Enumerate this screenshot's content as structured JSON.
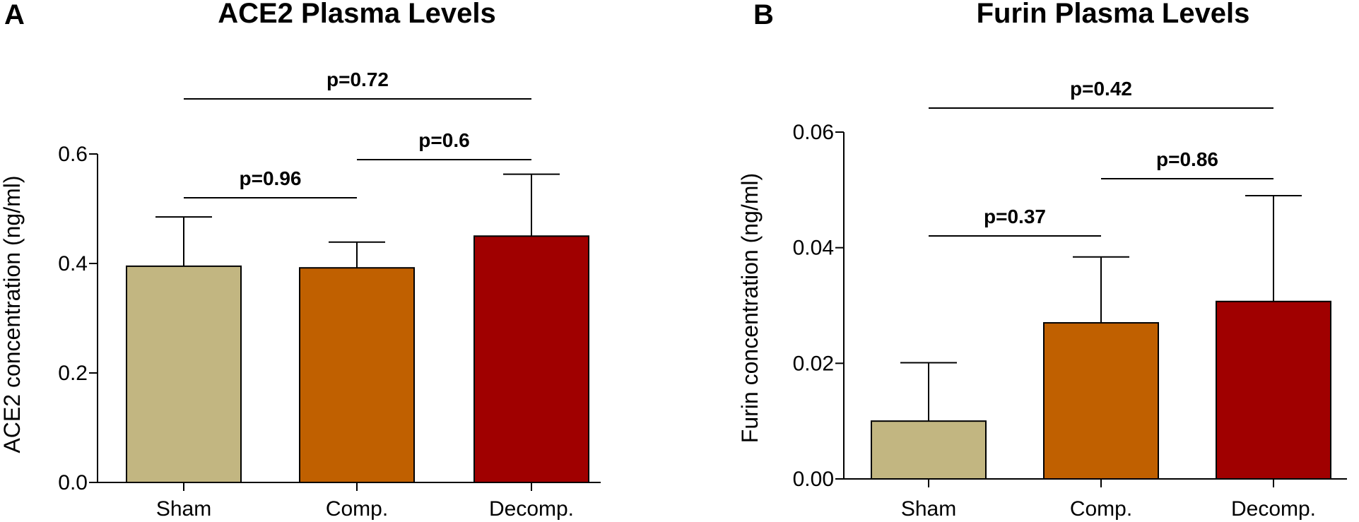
{
  "colors": {
    "sham": "#C2B681",
    "comp": "#C06000",
    "decomp": "#A00000"
  },
  "chart_data": [
    {
      "panel": "A",
      "type": "bar",
      "title": "ACE2 Plasma Levels",
      "ylabel": "ACE2 concentration (ng/ml)",
      "xlabel": "",
      "categories": [
        "Sham",
        "Comp.",
        "Decomp."
      ],
      "values": [
        0.395,
        0.392,
        0.45
      ],
      "errors": [
        0.09,
        0.047,
        0.113
      ],
      "ylim": [
        0,
        0.6
      ],
      "yticks": [
        "0.0",
        "0.2",
        "0.4",
        "0.6"
      ],
      "ytick_values": [
        0,
        0.2,
        0.4,
        0.6
      ],
      "comparisons": [
        {
          "from": 0,
          "to": 1,
          "label": "p=0.96"
        },
        {
          "from": 1,
          "to": 2,
          "label": "p=0.6"
        },
        {
          "from": 0,
          "to": 2,
          "label": "p=0.72"
        }
      ]
    },
    {
      "panel": "B",
      "type": "bar",
      "title": "Furin Plasma Levels",
      "ylabel": "Furin concentration (ng/ml)",
      "xlabel": "",
      "categories": [
        "Sham",
        "Comp.",
        "Decomp."
      ],
      "values": [
        0.01,
        0.027,
        0.0307
      ],
      "errors": [
        0.0101,
        0.0114,
        0.0183
      ],
      "ylim": [
        0,
        0.06
      ],
      "yticks": [
        "0.00",
        "0.02",
        "0.04",
        "0.06"
      ],
      "ytick_values": [
        0,
        0.02,
        0.04,
        0.06
      ],
      "comparisons": [
        {
          "from": 0,
          "to": 1,
          "label": "p=0.37"
        },
        {
          "from": 1,
          "to": 2,
          "label": "p=0.86"
        },
        {
          "from": 0,
          "to": 2,
          "label": "p=0.42"
        }
      ]
    }
  ]
}
